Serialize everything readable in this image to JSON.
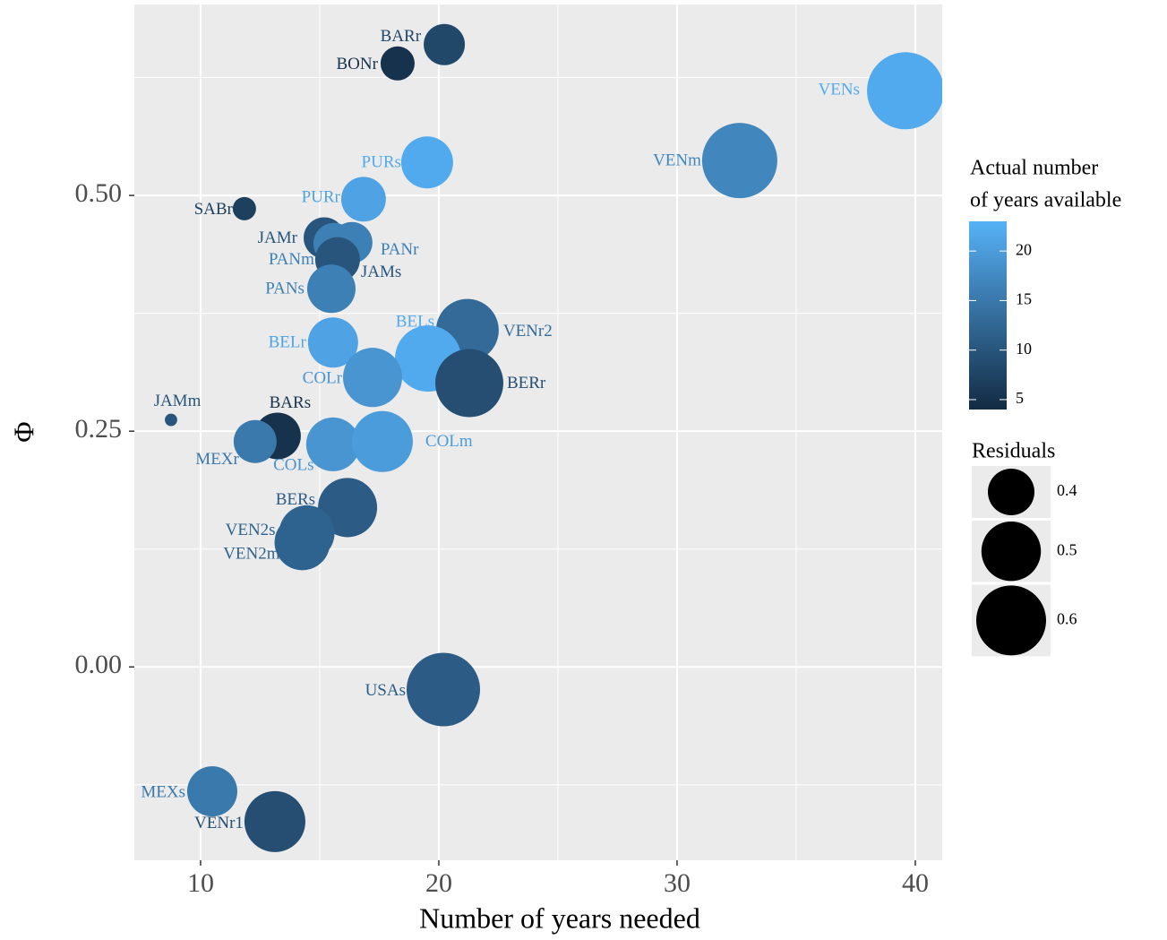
{
  "chart_data": {
    "type": "scatter",
    "x_label": "Number of years needed",
    "y_label": "Φ",
    "xlim": [
      7.22,
      41.13
    ],
    "ylim": [
      -0.205,
      0.7025
    ],
    "xticks": [
      10,
      20,
      30,
      40
    ],
    "yticks": [
      {
        "value": 0.5,
        "label": "0.50"
      },
      {
        "value": 0.25,
        "label": "0.25"
      },
      {
        "value": 0,
        "label": "0.00"
      }
    ],
    "grid": true,
    "labels": [
      "BARr",
      "BONr",
      "VENs",
      "VENm",
      "PURs",
      "PURr",
      "SABr",
      "JAMr",
      "PANr",
      "PANm",
      "JAMs",
      "PANs",
      "VENr2",
      "BELr",
      "BELs",
      "BERr",
      "COLr",
      "JAMm",
      "BARs",
      "MEXr",
      "COLs",
      "COLm",
      "BERs",
      "VEN2s",
      "VEN2m",
      "USAs",
      "MEXs",
      "VENr1"
    ],
    "x": [
      20.23,
      18.27,
      39.59,
      32.63,
      19.51,
      16.84,
      11.84,
      15.19,
      16.35,
      15.6,
      15.75,
      15.49,
      21.2,
      15.56,
      19.55,
      21.28,
      17.22,
      8.76,
      13.23,
      12.29,
      15.56,
      17.63,
      16.17,
      14.46,
      14.27,
      20.19,
      10.49,
      13.12
    ],
    "y": [
      0.66,
      0.64,
      0.611,
      0.537,
      0.535,
      0.496,
      0.486,
      0.455,
      0.45,
      0.449,
      0.432,
      0.401,
      0.357,
      0.344,
      0.327,
      0.301,
      0.307,
      0.262,
      0.245,
      0.239,
      0.236,
      0.239,
      0.169,
      0.142,
      0.132,
      -0.024,
      -0.132,
      -0.164
    ],
    "residuals": [
      0.366,
      0.329,
      0.679,
      0.659,
      0.438,
      0.388,
      0.288,
      0.366,
      0.366,
      0.366,
      0.388,
      0.412,
      0.529,
      0.425,
      0.563,
      0.581,
      0.497,
      0.266,
      0.4,
      0.377,
      0.452,
      0.513,
      0.497,
      0.466,
      0.466,
      0.639,
      0.425,
      0.513
    ],
    "years_available": [
      8,
      5,
      22,
      17,
      22,
      21,
      7,
      10,
      16,
      16,
      10,
      16,
      13,
      21,
      22,
      9,
      19,
      10,
      5,
      15,
      19,
      20,
      11,
      12,
      12,
      11,
      15,
      9
    ],
    "color_legend_title": [
      "Actual number",
      "of years available"
    ],
    "colorlim": [
      4,
      23
    ],
    "color_low": "#132B43",
    "color_high": "#56B1F7",
    "color_ticks": [
      5,
      10,
      15,
      20
    ],
    "size_legend_title": "Residuals",
    "size_legend_values": [
      0.4,
      0.5,
      0.6
    ]
  }
}
